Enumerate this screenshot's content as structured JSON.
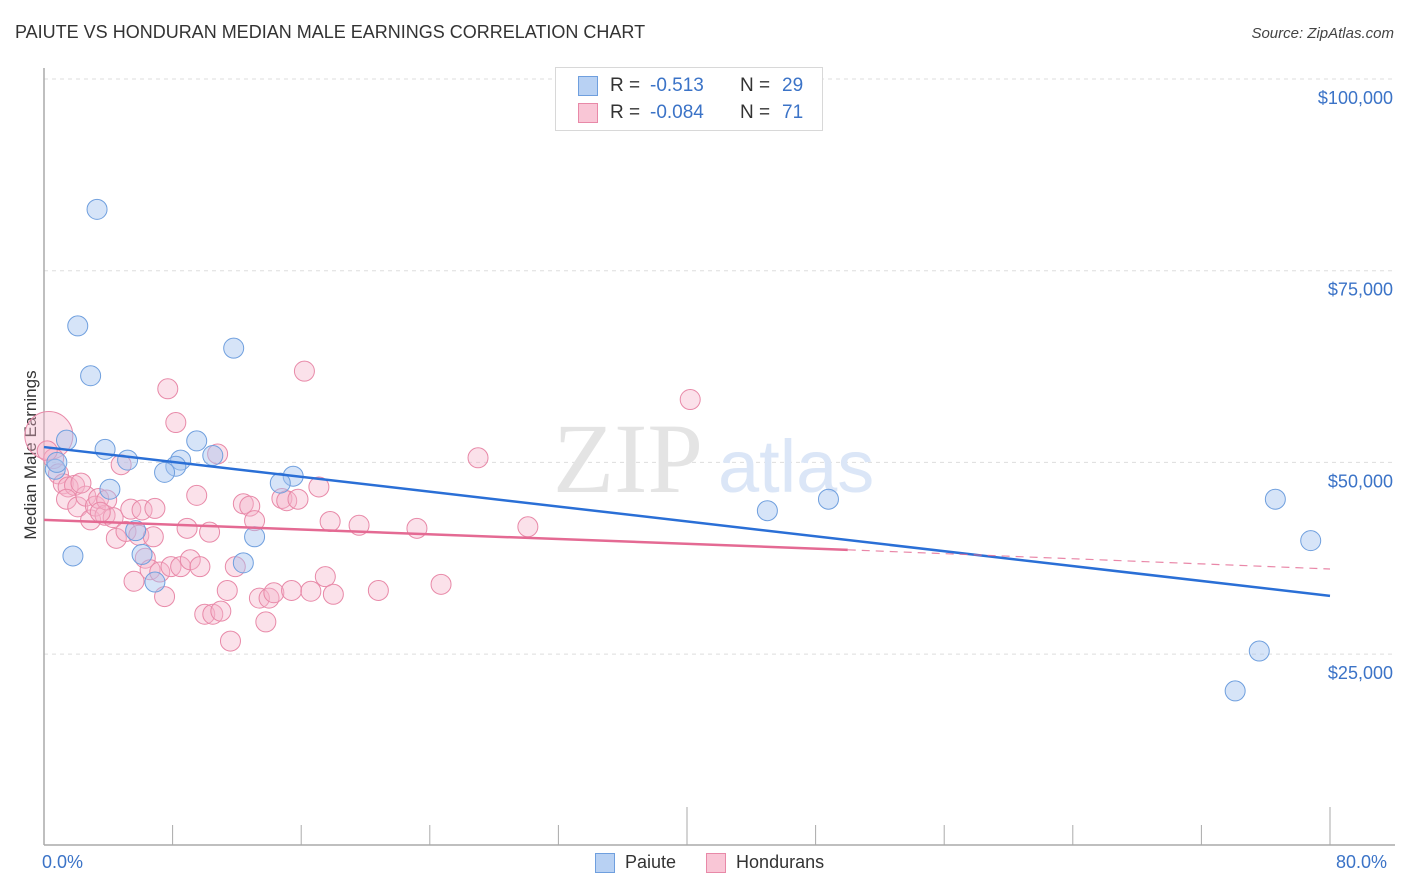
{
  "header": {
    "title": "PAIUTE VS HONDURAN MEDIAN MALE EARNINGS CORRELATION CHART",
    "source": "Source: ZipAtlas.com"
  },
  "watermark": {
    "zip": "ZIP",
    "atlas": "atlas"
  },
  "legend_stats": [
    {
      "series": "Paiute",
      "r_label": "R =",
      "r_value": "-0.513",
      "n_label": "N =",
      "n_value": "29",
      "color": "#b8d1f3",
      "border": "#6f9fde"
    },
    {
      "series": "Hondurans",
      "r_label": "R =",
      "r_value": "-0.084",
      "n_label": "N =",
      "n_value": "71",
      "color": "#f9c6d6",
      "border": "#e889a8"
    }
  ],
  "axes": {
    "x_min_label": "0.0%",
    "x_max_label": "80.0%",
    "y_title": "Median Male Earnings",
    "y_ticks": [
      "$100,000",
      "$75,000",
      "$50,000",
      "$25,000"
    ]
  },
  "legend_bottom": [
    {
      "label": "Paiute",
      "color": "#b8d1f3",
      "border": "#6f9fde"
    },
    {
      "label": "Hondurans",
      "color": "#f9c6d6",
      "border": "#e889a8"
    }
  ],
  "colors": {
    "paiute_fill": "rgba(164,196,240,0.45)",
    "paiute_stroke": "#6f9fde",
    "paiute_line": "#2a6fd6",
    "honduran_fill": "rgba(246,180,202,0.40)",
    "honduran_stroke": "#e889a8",
    "honduran_line": "#e46a93",
    "tick_label": "#3b73c7",
    "grid": "#dddddd"
  },
  "chart_data": {
    "type": "scatter",
    "title": "PAIUTE VS HONDURAN MEDIAN MALE EARNINGS CORRELATION CHART",
    "xlabel": "",
    "ylabel": "Median Male Earnings",
    "xlim": [
      0,
      80
    ],
    "ylim": [
      0,
      102500
    ],
    "x_unit": "%",
    "y_ticks": [
      25000,
      50000,
      75000,
      100000
    ],
    "grid": true,
    "legend_position": "bottom",
    "series": [
      {
        "name": "Paiute",
        "r": -0.513,
        "n": 29,
        "trend": {
          "x": [
            0,
            80
          ],
          "y": [
            52000,
            32600
          ]
        },
        "points": [
          [
            3.3,
            83000
          ],
          [
            2.1,
            67800
          ],
          [
            11.8,
            64900
          ],
          [
            2.9,
            61300
          ],
          [
            1.4,
            52900
          ],
          [
            3.8,
            51700
          ],
          [
            9.5,
            52800
          ],
          [
            5.2,
            50300
          ],
          [
            10.5,
            50900
          ],
          [
            8.5,
            50300
          ],
          [
            8.2,
            49500
          ],
          [
            7.5,
            48700
          ],
          [
            0.7,
            49100
          ],
          [
            15.5,
            48200
          ],
          [
            14.7,
            47300
          ],
          [
            4.1,
            46500
          ],
          [
            48.8,
            45200
          ],
          [
            45.0,
            43700
          ],
          [
            76.6,
            45200
          ],
          [
            13.1,
            40300
          ],
          [
            5.7,
            41100
          ],
          [
            78.8,
            39800
          ],
          [
            1.8,
            37800
          ],
          [
            6.1,
            38000
          ],
          [
            12.4,
            36900
          ],
          [
            6.9,
            34400
          ],
          [
            75.6,
            25400
          ],
          [
            74.1,
            20200
          ],
          [
            0.8,
            50000
          ]
        ]
      },
      {
        "name": "Hondurans",
        "r": -0.084,
        "n": 71,
        "trend": {
          "x": [
            0,
            50,
            80
          ],
          "y": [
            42500,
            38600,
            36100
          ],
          "solid_until": 50
        },
        "points": [
          [
            0.3,
            53500
          ],
          [
            0.6,
            50500
          ],
          [
            0.9,
            48500
          ],
          [
            1.2,
            47200
          ],
          [
            1.5,
            46800
          ],
          [
            1.9,
            47000
          ],
          [
            1.4,
            45200
          ],
          [
            2.1,
            44200
          ],
          [
            2.6,
            45600
          ],
          [
            2.9,
            42500
          ],
          [
            3.2,
            44300
          ],
          [
            3.4,
            45300
          ],
          [
            3.8,
            43100
          ],
          [
            3.9,
            45100
          ],
          [
            4.3,
            42800
          ],
          [
            4.5,
            40100
          ],
          [
            4.8,
            49700
          ],
          [
            5.1,
            41000
          ],
          [
            5.4,
            43900
          ],
          [
            5.6,
            34500
          ],
          [
            5.9,
            40500
          ],
          [
            6.1,
            43800
          ],
          [
            6.3,
            37500
          ],
          [
            6.6,
            36000
          ],
          [
            6.8,
            40300
          ],
          [
            7.2,
            35700
          ],
          [
            7.5,
            32500
          ],
          [
            7.7,
            59600
          ],
          [
            7.9,
            36400
          ],
          [
            8.2,
            55200
          ],
          [
            8.5,
            36400
          ],
          [
            8.9,
            41400
          ],
          [
            9.1,
            37300
          ],
          [
            9.5,
            45700
          ],
          [
            9.7,
            36400
          ],
          [
            10.0,
            30200
          ],
          [
            10.3,
            40900
          ],
          [
            10.5,
            30200
          ],
          [
            10.8,
            51100
          ],
          [
            11.0,
            30600
          ],
          [
            11.4,
            33300
          ],
          [
            11.6,
            26700
          ],
          [
            11.9,
            36400
          ],
          [
            12.4,
            44600
          ],
          [
            12.8,
            44300
          ],
          [
            13.1,
            42400
          ],
          [
            13.4,
            32300
          ],
          [
            13.8,
            29200
          ],
          [
            14.0,
            32300
          ],
          [
            14.3,
            33000
          ],
          [
            14.8,
            45300
          ],
          [
            15.1,
            45000
          ],
          [
            15.4,
            33300
          ],
          [
            15.8,
            45200
          ],
          [
            16.2,
            61900
          ],
          [
            16.6,
            33200
          ],
          [
            17.1,
            46800
          ],
          [
            17.5,
            35100
          ],
          [
            17.8,
            42300
          ],
          [
            18.0,
            32800
          ],
          [
            19.6,
            41800
          ],
          [
            20.8,
            33300
          ],
          [
            23.2,
            41400
          ],
          [
            24.7,
            34100
          ],
          [
            27.0,
            50600
          ],
          [
            30.1,
            41600
          ],
          [
            40.2,
            58200
          ],
          [
            0.2,
            51500
          ],
          [
            2.3,
            47300
          ],
          [
            6.9,
            44000
          ],
          [
            3.5,
            43500
          ]
        ]
      }
    ]
  }
}
